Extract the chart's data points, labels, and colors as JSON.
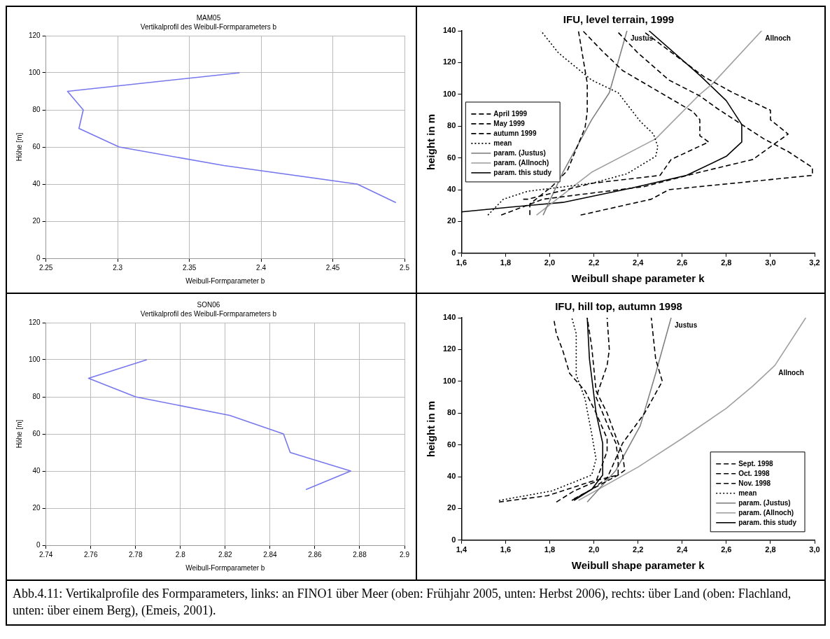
{
  "chart_data": [
    {
      "type": "line",
      "title": "MAM05",
      "subtitle": "Vertikalprofil des Weibull-Formparameters b",
      "xlabel": "Weibull-Formparameter b",
      "ylabel": "Höhe [m]",
      "xlim": [
        2.25,
        2.5
      ],
      "xticks": [
        2.25,
        2.3,
        2.35,
        2.4,
        2.45,
        2.5
      ],
      "ylim": [
        0,
        120
      ],
      "yticks": [
        0,
        20,
        40,
        60,
        80,
        100,
        120
      ],
      "grid": true,
      "legend": false,
      "marker": "none",
      "series": [
        {
          "color": "#7777ee",
          "line_style": "solid",
          "x": [
            2.385,
            2.265,
            2.276,
            2.273,
            2.301,
            2.374,
            2.467,
            2.494
          ],
          "values": [
            100,
            90,
            80,
            70,
            60,
            50,
            40,
            30
          ]
        }
      ]
    },
    {
      "type": "line",
      "title": "IFU, level terrain, 1999",
      "xlabel": "Weibull shape parameter k",
      "ylabel": "height in m",
      "xlim": [
        1.6,
        3.2
      ],
      "xticks": [
        {
          "value": 1.6,
          "label": "1,6"
        },
        {
          "value": 1.8,
          "label": "1,8"
        },
        {
          "value": 2.0,
          "label": "2,0"
        },
        {
          "value": 2.2,
          "label": "2,2"
        },
        {
          "value": 2.4,
          "label": "2,4"
        },
        {
          "value": 2.6,
          "label": "2,6"
        },
        {
          "value": 2.8,
          "label": "2,8"
        },
        {
          "value": 3.0,
          "label": "3,0"
        },
        {
          "value": 3.2,
          "label": "3,2"
        }
      ],
      "ylim": [
        0,
        140
      ],
      "yticks": [
        0,
        20,
        40,
        60,
        80,
        100,
        120,
        140
      ],
      "grid": false,
      "legend": "left",
      "marker": "none",
      "annotations": [
        {
          "text": "Justus",
          "x": 2.35,
          "y": 140
        },
        {
          "text": "Allnoch",
          "x": 2.96,
          "y": 140
        }
      ],
      "series": [
        {
          "name": "April 1999",
          "color": "#000000",
          "line_style": "dashed",
          "x": [
            2.14,
            2.46,
            2.54,
            3.19,
            3.19,
            3.08,
            2.97,
            2.87,
            2.76,
            2.68,
            2.54,
            2.4,
            2.31
          ],
          "values": [
            24,
            34,
            40,
            49,
            54,
            64,
            72,
            81,
            91,
            99,
            109,
            126,
            139
          ]
        },
        {
          "name": "May 1999",
          "color": "#000000",
          "line_style": "dashed",
          "x": [
            1.88,
            1.9,
            2.19,
            2.5,
            2.55,
            2.72,
            2.68,
            2.68,
            2.65,
            2.49,
            2.33,
            2.24,
            2.15
          ],
          "values": [
            34,
            34,
            44,
            49,
            59,
            70,
            74,
            84,
            89,
            102,
            115,
            127,
            140
          ]
        },
        {
          "name": "autumn 1999",
          "color": "#000000",
          "line_style": "dashed",
          "x": [
            1.78,
            1.97,
            2.43,
            2.68,
            2.92,
            3.08,
            3.0,
            3.0,
            2.83,
            2.7,
            2.43
          ],
          "values": [
            24,
            34,
            42,
            51,
            59,
            75,
            84,
            90,
            101,
            111,
            139
          ]
        },
        {
          "name": "mean",
          "color": "#000000",
          "line_style": "dotted",
          "x": [
            1.72,
            1.79,
            1.9,
            2.19,
            2.35,
            2.48,
            2.49,
            2.47,
            2.41,
            2.31,
            2.19,
            2.04,
            1.96
          ],
          "values": [
            24,
            34,
            39,
            44,
            50,
            61,
            67,
            75,
            83,
            101,
            109,
            126,
            140
          ]
        },
        {
          "color": "#000000",
          "line_style": "dashed",
          "x": [
            1.91,
            1.91,
            2.01,
            2.08,
            2.16,
            2.17,
            2.17,
            2.13
          ],
          "values": [
            24,
            31,
            42,
            52,
            79,
            89,
            107,
            140
          ]
        },
        {
          "name": "param. (Justus)",
          "color": "#808080",
          "line_style": "solid",
          "x": [
            1.97,
            2.06,
            2.19,
            2.27,
            2.35
          ],
          "values": [
            24,
            51,
            84,
            101,
            140
          ]
        },
        {
          "name": "param. (Allnoch)",
          "color": "#a0a0a0",
          "line_style": "solid",
          "x": [
            1.94,
            2.19,
            2.48,
            2.68,
            2.74,
            2.96
          ],
          "values": [
            24,
            51,
            72,
            100,
            107,
            140
          ]
        },
        {
          "name": "param. this study",
          "color": "#000000",
          "line_style": "solid",
          "x": [
            1.6,
            1.82,
            2.06,
            2.37,
            2.62,
            2.8,
            2.87,
            2.87,
            2.8,
            2.68,
            2.45
          ],
          "values": [
            26,
            29,
            32,
            41,
            49,
            61,
            70,
            81,
            96,
            112,
            140
          ]
        }
      ]
    },
    {
      "type": "line",
      "title": "SON06",
      "subtitle": "Vertikalprofil des Weibull-Formparameters b",
      "xlabel": "Weibull-Formparameter b",
      "ylabel": "Höhe [m]",
      "xlim": [
        2.74,
        2.9
      ],
      "xticks": [
        2.74,
        2.76,
        2.78,
        2.8,
        2.82,
        2.84,
        2.86,
        2.88,
        2.9
      ],
      "ylim": [
        0,
        120
      ],
      "yticks": [
        0,
        20,
        40,
        60,
        80,
        100,
        120
      ],
      "grid": true,
      "legend": false,
      "marker": "none",
      "series": [
        {
          "color": "#7777ee",
          "line_style": "solid",
          "x": [
            2.785,
            2.759,
            2.78,
            2.822,
            2.846,
            2.849,
            2.876,
            2.856
          ],
          "values": [
            100,
            90,
            80,
            70,
            60,
            50,
            40,
            30
          ]
        }
      ]
    },
    {
      "type": "line",
      "title": "IFU, hill top, autumn 1998",
      "xlabel": "Weibull shape parameter k",
      "ylabel": "height in m",
      "xlim": [
        1.4,
        3.0
      ],
      "xticks": [
        {
          "value": 1.4,
          "label": "1,4"
        },
        {
          "value": 1.6,
          "label": "1,6"
        },
        {
          "value": 1.8,
          "label": "1,8"
        },
        {
          "value": 2.0,
          "label": "2,0"
        },
        {
          "value": 2.2,
          "label": "2,2"
        },
        {
          "value": 2.4,
          "label": "2,4"
        },
        {
          "value": 2.6,
          "label": "2,6"
        },
        {
          "value": 2.8,
          "label": "2,8"
        },
        {
          "value": 3.0,
          "label": "3,0"
        }
      ],
      "ylim": [
        0,
        140
      ],
      "yticks": [
        0,
        20,
        40,
        60,
        80,
        100,
        120,
        140
      ],
      "grid": false,
      "legend": "bottom right",
      "marker": "none",
      "annotations": [
        {
          "text": "Justus",
          "x": 2.35,
          "y": 140
        },
        {
          "text": "Allnoch",
          "x": 2.82,
          "y": 110
        },
        "Abb.4.11: Vertikalprofile des Formparameters, links: an FINO1 über Meer (oben: Frühjahr 2005, unten: Herbst 2006), rechts: über Land (oben: Flachland, unten: über einem Berg), (Emeis, 2001)."
      ],
      "series": [
        {
          "name": "Sept. 1998",
          "color": "#000000",
          "line_style": "dashed",
          "x": [
            1.83,
            1.91,
            2.01,
            2.06,
            2.06,
            2.01,
            1.96,
            1.89,
            1.86,
            1.83,
            1.82
          ],
          "values": [
            24,
            31,
            37,
            56,
            64,
            80,
            94,
            105,
            119,
            130,
            138
          ]
        },
        {
          "name": "Oct. 1998",
          "color": "#000000",
          "line_style": "dashed",
          "x": [
            1.57,
            1.79,
            1.99,
            2.11,
            2.11,
            2.1,
            2.07,
            2.01,
            2.06,
            2.07,
            2.06
          ],
          "values": [
            24,
            28,
            37,
            41,
            51,
            61,
            70,
            90,
            110,
            120,
            140
          ]
        },
        {
          "name": "Nov. 1998",
          "color": "#000000",
          "line_style": "dashed",
          "x": [
            1.91,
            2.11,
            2.14,
            2.13,
            2.1,
            2.06,
            2.01,
            1.99,
            1.97
          ],
          "values": [
            26,
            41,
            44,
            54,
            65,
            80,
            94,
            122,
            140
          ]
        },
        {
          "name": "mean",
          "color": "#000000",
          "line_style": "dotted",
          "x": [
            1.57,
            1.81,
            1.99,
            2.01,
            1.99,
            1.96,
            1.92,
            1.92,
            1.9
          ],
          "values": [
            25,
            31,
            41,
            51,
            67,
            89,
            104,
            130,
            140
          ]
        },
        {
          "color": "#000000",
          "line_style": "dashed",
          "x": [
            1.9,
            1.99,
            2.06,
            2.13,
            2.23,
            2.31,
            2.28,
            2.26
          ],
          "values": [
            25,
            32,
            39,
            61,
            80,
            100,
            114,
            140
          ]
        },
        {
          "name": "param. (Justus)",
          "color": "#808080",
          "line_style": "solid",
          "x": [
            1.97,
            2.1,
            2.21,
            2.28,
            2.35
          ],
          "values": [
            24,
            44,
            72,
            105,
            140
          ]
        },
        {
          "name": "param. (Allnoch)",
          "color": "#a0a0a0",
          "line_style": "solid",
          "x": [
            1.93,
            2.2,
            2.4,
            2.6,
            2.72,
            2.82,
            2.96
          ],
          "values": [
            25,
            46,
            64,
            83,
            97,
            110,
            140
          ]
        },
        {
          "name": "param. this study",
          "color": "#000000",
          "line_style": "solid",
          "x": [
            1.91,
            1.99,
            2.04,
            2.04,
            2.01,
            1.98,
            1.97
          ],
          "values": [
            25,
            32,
            41,
            61,
            80,
            114,
            140
          ]
        }
      ]
    }
  ]
}
